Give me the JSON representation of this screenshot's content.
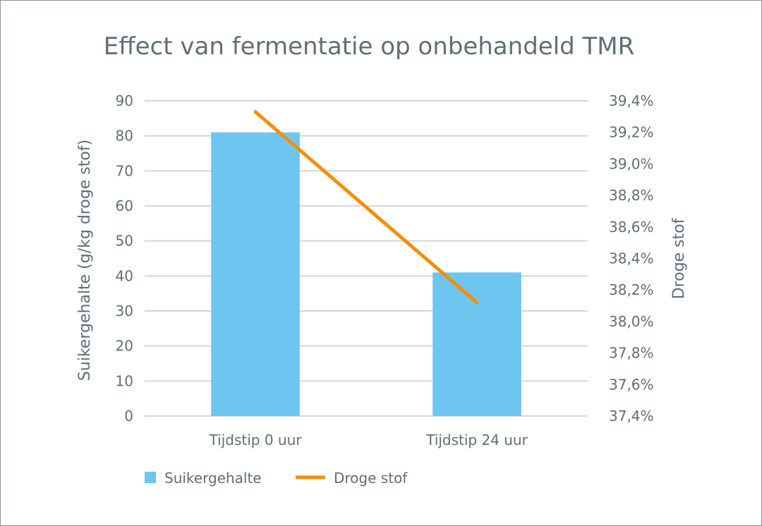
{
  "chart_data": {
    "type": "bar",
    "title": "Effect van fermentatie op onbehandeld TMR",
    "categories": [
      "Tijdstip 0 uur",
      "Tijdstip 24 uur"
    ],
    "series": [
      {
        "name": "Suikergehalte",
        "type": "bar",
        "axis": "left",
        "values": [
          81,
          41
        ],
        "color": "#6ec6f0"
      },
      {
        "name": "Droge stof",
        "type": "line",
        "axis": "right",
        "values": [
          39.33,
          38.12
        ],
        "color": "#f0900a"
      }
    ],
    "ylabel": "Suikergehalte (g/kg droge stof)",
    "ylabel_right": "Droge stof",
    "ylim": [
      0,
      90
    ],
    "yticks": [
      0,
      10,
      20,
      30,
      40,
      50,
      60,
      70,
      80,
      90
    ],
    "ylim_right": [
      37.4,
      39.4
    ],
    "yticks_right": [
      "37,4%",
      "37,6%",
      "37,8%",
      "38,0%",
      "38,2%",
      "38,4%",
      "38,6%",
      "38,8%",
      "39,0%",
      "39,2%",
      "39,4%"
    ],
    "yticks_right_values": [
      37.4,
      37.6,
      37.8,
      38.0,
      38.2,
      38.4,
      38.6,
      38.8,
      39.0,
      39.2,
      39.4
    ],
    "grid": true,
    "legend": "bottom-left"
  }
}
